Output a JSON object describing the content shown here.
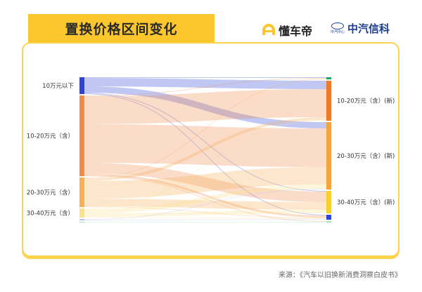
{
  "header": {
    "title": "置换价格区间变化",
    "logo_dongchedi": "懂车帝",
    "logo_zhongqi": "中汽信科",
    "logo_zhongqi_sub": "中汽中心"
  },
  "source": "来源：《汽车以旧换新消费洞察白皮书》",
  "chart_data": {
    "type": "sankey",
    "title": "置换价格区间变化",
    "units": "approximate relative share (estimated from band widths)",
    "left_nodes": [
      {
        "id": "L1",
        "name": "10万元以下",
        "color": "#2e44d6"
      },
      {
        "id": "L2",
        "name": "10-20万元（含）",
        "color": "#f08a4b"
      },
      {
        "id": "L3",
        "name": "20-30万元（含）",
        "color": "#f7b155"
      },
      {
        "id": "L4",
        "name": "30-40万元（含）",
        "color": "#fde08a"
      },
      {
        "id": "L5",
        "name": "",
        "color": "#b8c0f0"
      },
      {
        "id": "L6",
        "name": "",
        "color": "#9fe3c4"
      }
    ],
    "right_nodes": [
      {
        "id": "R0",
        "name": "",
        "color": "#1aa85c"
      },
      {
        "id": "R1",
        "name": "10-20万元（含）(新)",
        "color": "#ef7a2a"
      },
      {
        "id": "R2",
        "name": "20-30万元（含）(新)",
        "color": "#f3a43a"
      },
      {
        "id": "R3",
        "name": "30-40万元（含）(新)",
        "color": "#f8cf2a"
      },
      {
        "id": "R4",
        "name": "",
        "color": "#2e44d6"
      },
      {
        "id": "R5",
        "name": "",
        "color": "#9fe3c4"
      }
    ],
    "links": [
      {
        "source": "L1",
        "target": "R0",
        "value": 1
      },
      {
        "source": "L1",
        "target": "R1",
        "value": 12
      },
      {
        "source": "L1",
        "target": "R2",
        "value": 9
      },
      {
        "source": "L1",
        "target": "R3",
        "value": 1
      },
      {
        "source": "L1",
        "target": "R4",
        "value": 1
      },
      {
        "source": "L2",
        "target": "R0",
        "value": 1
      },
      {
        "source": "L2",
        "target": "R1",
        "value": 40
      },
      {
        "source": "L2",
        "target": "R2",
        "value": 55
      },
      {
        "source": "L2",
        "target": "R3",
        "value": 15
      },
      {
        "source": "L2",
        "target": "R4",
        "value": 3
      },
      {
        "source": "L2",
        "target": "R5",
        "value": 1
      },
      {
        "source": "L3",
        "target": "R0",
        "value": 1
      },
      {
        "source": "L3",
        "target": "R1",
        "value": 4
      },
      {
        "source": "L3",
        "target": "R2",
        "value": 25
      },
      {
        "source": "L3",
        "target": "R3",
        "value": 11
      },
      {
        "source": "L3",
        "target": "R4",
        "value": 1
      },
      {
        "source": "L4",
        "target": "R1",
        "value": 1
      },
      {
        "source": "L4",
        "target": "R2",
        "value": 6
      },
      {
        "source": "L4",
        "target": "R3",
        "value": 5
      },
      {
        "source": "L4",
        "target": "R4",
        "value": 1
      },
      {
        "source": "L5",
        "target": "R2",
        "value": 1
      },
      {
        "source": "L5",
        "target": "R4",
        "value": 1
      },
      {
        "source": "L6",
        "target": "R5",
        "value": 1
      }
    ]
  }
}
